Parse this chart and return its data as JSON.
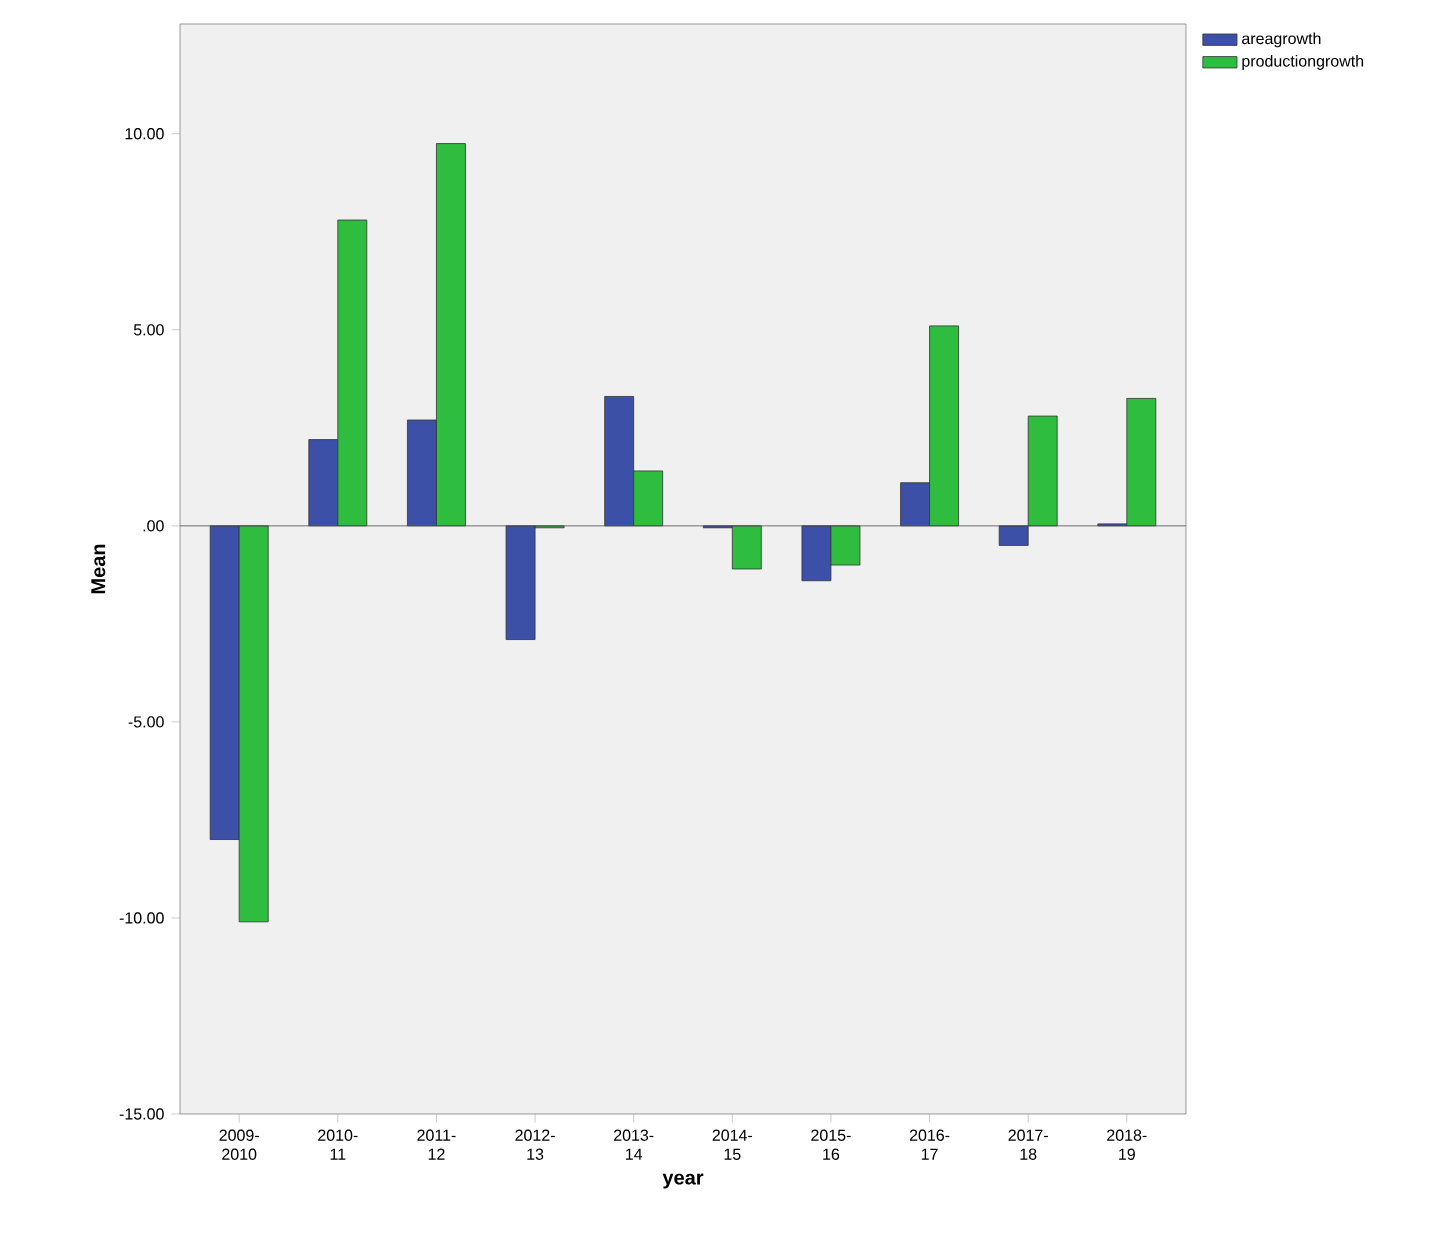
{
  "chart_data": {
    "type": "bar",
    "xlabel": "year",
    "ylabel": "Mean",
    "categories": [
      "2009- 2010",
      "2010- 11",
      "2011- 12",
      "2012- 13",
      "2013- 14",
      "2014- 15",
      "2015- 16",
      "2016- 17",
      "2017- 18",
      "2018- 19"
    ],
    "series": [
      {
        "name": "areagrowth",
        "color": "#3c50a8",
        "values": [
          -8.0,
          2.2,
          2.7,
          -2.9,
          3.3,
          -0.05,
          -1.4,
          1.1,
          -0.5,
          0.05
        ]
      },
      {
        "name": "productiongrowth",
        "color": "#2ebd3e",
        "values": [
          -10.1,
          7.8,
          9.75,
          -0.05,
          1.4,
          -1.1,
          -1.0,
          5.1,
          2.8,
          3.25
        ]
      }
    ],
    "ylim": [
      -15,
      12.8
    ],
    "yticks": [
      {
        "value": -15,
        "label": "-15.00"
      },
      {
        "value": -10,
        "label": "-10.00"
      },
      {
        "value": -5,
        "label": "-5.00"
      },
      {
        "value": 0,
        "label": ".00"
      },
      {
        "value": 5,
        "label": "5.00"
      },
      {
        "value": 10,
        "label": "10.00"
      }
    ],
    "ref_lines": [
      {
        "axis": "y",
        "value": 0
      }
    ],
    "legend": "top right"
  }
}
